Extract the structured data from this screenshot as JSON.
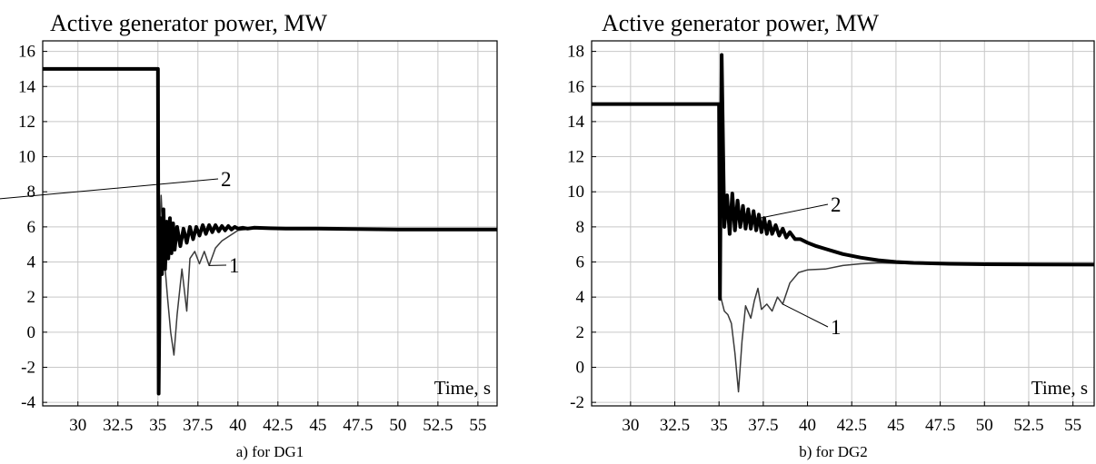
{
  "chart_data": [
    {
      "type": "line",
      "title": "Active generator power, MW",
      "xlabel": "Time, s",
      "ylabel": "",
      "caption": "a) for DG1",
      "xlim": [
        27.8,
        56.2
      ],
      "ylim": [
        -4.2,
        16.6
      ],
      "xticks": [
        30,
        32.5,
        35,
        37.5,
        40,
        42.5,
        45,
        47.5,
        50,
        52.5,
        55
      ],
      "xtick_labels": [
        "30",
        "32.5",
        "35",
        "37.5",
        "40",
        "42.5",
        "45",
        "47.5",
        "50",
        "52.5",
        "55"
      ],
      "yticks": [
        -4,
        -2,
        0,
        2,
        4,
        6,
        8,
        10,
        12,
        14,
        16
      ],
      "ytick_labels": [
        "-4",
        "-2",
        "0",
        "2",
        "4",
        "6",
        "8",
        "10",
        "12",
        "14",
        "16"
      ],
      "grid": true,
      "series": [
        {
          "name": "1",
          "x": [
            27.8,
            35.0,
            35.05,
            35.2,
            35.4,
            35.6,
            35.8,
            36.0,
            36.2,
            36.5,
            36.8,
            37.0,
            37.3,
            37.6,
            37.9,
            38.2,
            38.6,
            39.0,
            39.5,
            40.0,
            41.0,
            43.0,
            45.0,
            50.0,
            56.2
          ],
          "y": [
            15.0,
            15.0,
            4.0,
            7.8,
            4.2,
            2.0,
            0.0,
            -1.3,
            1.0,
            3.6,
            1.2,
            4.2,
            4.6,
            3.9,
            4.6,
            3.8,
            4.8,
            5.2,
            5.5,
            5.8,
            5.9,
            5.9,
            5.9,
            5.85,
            5.85
          ]
        },
        {
          "name": "2",
          "x": [
            27.8,
            35.0,
            35.05,
            35.15,
            35.25,
            35.35,
            35.45,
            35.55,
            35.65,
            35.75,
            35.85,
            35.95,
            36.05,
            36.2,
            36.4,
            36.6,
            36.8,
            37.0,
            37.2,
            37.4,
            37.6,
            37.8,
            38.0,
            38.2,
            38.4,
            38.6,
            38.8,
            39.0,
            39.2,
            39.4,
            39.6,
            39.8,
            40.0,
            40.3,
            40.6,
            41.0,
            42.0,
            43.0,
            45.0,
            47.5,
            50.0,
            56.2
          ],
          "y": [
            15.0,
            15.0,
            -3.5,
            6.5,
            3.3,
            7.0,
            3.6,
            6.3,
            4.2,
            6.5,
            4.5,
            6.2,
            4.7,
            6.0,
            4.9,
            5.9,
            5.1,
            6.0,
            5.3,
            6.0,
            5.5,
            6.1,
            5.6,
            6.1,
            5.7,
            6.1,
            5.75,
            6.05,
            5.8,
            6.05,
            5.85,
            6.0,
            5.9,
            5.95,
            5.9,
            5.95,
            5.92,
            5.9,
            5.9,
            5.88,
            5.85,
            5.85
          ]
        }
      ]
    },
    {
      "type": "line",
      "title": "Active generator power, MW",
      "xlabel": "Time, s",
      "ylabel": "",
      "caption": "b) for DG2",
      "xlim": [
        27.8,
        56.2
      ],
      "ylim": [
        -2.2,
        18.6
      ],
      "xticks": [
        30,
        32.5,
        35,
        37.5,
        40,
        42.5,
        45,
        47.5,
        50,
        52.5,
        55
      ],
      "xtick_labels": [
        "30",
        "32.5",
        "35",
        "37.5",
        "40",
        "42.5",
        "45",
        "47.5",
        "50",
        "52.5",
        "55"
      ],
      "yticks": [
        -2,
        0,
        2,
        4,
        6,
        8,
        10,
        12,
        14,
        16,
        18
      ],
      "ytick_labels": [
        "-2",
        "0",
        "2",
        "4",
        "6",
        "8",
        "10",
        "12",
        "14",
        "16",
        "18"
      ],
      "grid": true,
      "series": [
        {
          "name": "1",
          "x": [
            27.8,
            35.0,
            35.1,
            35.3,
            35.5,
            35.7,
            35.9,
            36.1,
            36.3,
            36.5,
            36.8,
            37.0,
            37.2,
            37.4,
            37.7,
            38.0,
            38.3,
            38.6,
            39.0,
            39.5,
            40.0,
            41.0,
            42.0,
            43.0,
            44.0,
            46.0,
            50.0,
            56.2
          ],
          "y": [
            15.0,
            15.0,
            4.0,
            3.2,
            3.0,
            2.5,
            0.8,
            -1.4,
            1.5,
            3.5,
            2.8,
            3.8,
            4.5,
            3.3,
            3.6,
            3.2,
            4.0,
            3.6,
            4.8,
            5.4,
            5.55,
            5.6,
            5.8,
            5.9,
            5.95,
            5.9,
            5.85,
            5.85
          ]
        },
        {
          "name": "2",
          "x": [
            27.8,
            35.0,
            35.05,
            35.15,
            35.3,
            35.45,
            35.6,
            35.75,
            35.9,
            36.05,
            36.2,
            36.35,
            36.5,
            36.65,
            36.8,
            36.95,
            37.1,
            37.25,
            37.4,
            37.55,
            37.7,
            37.85,
            38.0,
            38.2,
            38.4,
            38.6,
            38.8,
            39.0,
            39.3,
            39.6,
            40.0,
            40.5,
            41.0,
            41.5,
            42.0,
            43.0,
            44.0,
            45.0,
            46.0,
            48.0,
            50.0,
            56.2
          ],
          "y": [
            15.0,
            15.0,
            3.9,
            17.8,
            8.0,
            9.8,
            7.6,
            9.9,
            7.8,
            9.5,
            8.0,
            9.2,
            7.9,
            9.0,
            7.9,
            8.9,
            7.8,
            8.7,
            7.7,
            8.5,
            7.6,
            8.3,
            7.6,
            8.1,
            7.5,
            7.9,
            7.4,
            7.7,
            7.3,
            7.3,
            7.1,
            6.9,
            6.75,
            6.6,
            6.45,
            6.25,
            6.1,
            6.0,
            5.95,
            5.9,
            5.87,
            5.85
          ]
        }
      ]
    }
  ]
}
